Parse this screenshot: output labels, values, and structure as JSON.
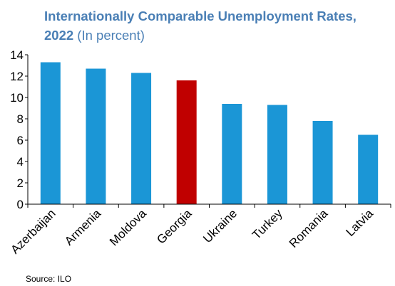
{
  "chart_data": {
    "type": "bar",
    "title": "Internationally Comparable Unemployment Rates, 2022",
    "subtitle": "(In percent)",
    "categories": [
      "Azerbaijan",
      "Armenia",
      "Moldova",
      "Georgia",
      "Ukraine",
      "Turkey",
      "Romania",
      "Latvia"
    ],
    "values": [
      13.3,
      12.7,
      12.3,
      11.6,
      9.4,
      9.3,
      7.8,
      6.5
    ],
    "highlight": "Georgia",
    "colors": {
      "default": "#1b96d6",
      "highlight": "#c00000"
    },
    "ylim": [
      0,
      14
    ],
    "yticks": [
      0,
      2,
      4,
      6,
      8,
      10,
      12,
      14
    ],
    "grid": false,
    "xlabel": "",
    "ylabel": ""
  },
  "source": "Source: ILO"
}
